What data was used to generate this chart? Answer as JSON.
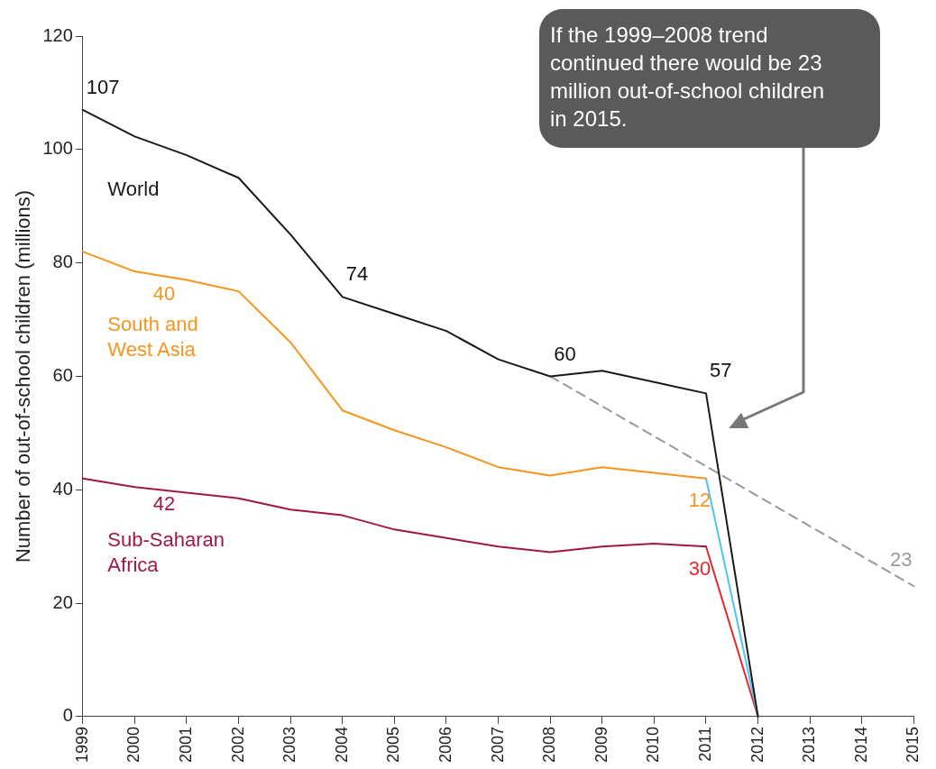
{
  "chart_data": {
    "type": "line",
    "ylabel": "Number of out-of-school children (millions)",
    "x": [
      1999,
      2000,
      2001,
      2002,
      2003,
      2004,
      2005,
      2006,
      2007,
      2008,
      2009,
      2010,
      2011,
      2012
    ],
    "xlim": [
      1999,
      2015
    ],
    "xticks": [
      1999,
      2000,
      2001,
      2002,
      2003,
      2004,
      2005,
      2006,
      2007,
      2008,
      2009,
      2010,
      2011,
      2012,
      2013,
      2014,
      2015
    ],
    "ylim": [
      0,
      120
    ],
    "yticks": [
      0,
      20,
      40,
      60,
      80,
      100,
      120
    ],
    "grid": false,
    "legend": false,
    "marker": "none",
    "series": [
      {
        "name": "World",
        "color": "#1a1a1a",
        "values": [
          107,
          102.3,
          99,
          95,
          85,
          74,
          71,
          68,
          63,
          60,
          61,
          59,
          57,
          0
        ],
        "value_labels": [
          "107",
          null,
          null,
          null,
          null,
          "74",
          null,
          null,
          null,
          "60",
          null,
          null,
          "57",
          null
        ]
      },
      {
        "name": "South and West Asia",
        "color": "#f7941d",
        "values": [
          82,
          78.5,
          77,
          75,
          66,
          54,
          50.5,
          47.5,
          44,
          42.5,
          44,
          43,
          42,
          null
        ]
      },
      {
        "name": "Sub-Saharan Africa",
        "color": "#a0154a",
        "values": [
          42,
          40.5,
          39.5,
          38.5,
          36.5,
          35.5,
          33,
          31.5,
          30,
          29,
          30,
          30.5,
          30,
          null
        ]
      },
      {
        "color": "#4fc3f7",
        "x": [
          2011,
          2012
        ],
        "values": [
          42,
          0
        ]
      },
      {
        "color": "#e8262a",
        "x": [
          2011,
          2012
        ],
        "values": [
          30,
          0
        ]
      },
      {
        "color": "#999999",
        "x": [
          2008,
          2015
        ],
        "values": [
          60,
          23
        ],
        "line_style": "dashed"
      }
    ],
    "annotations": [
      "40",
      "42",
      "12",
      "30",
      {
        "text": "23",
        "x": 2015,
        "y": 23
      },
      "If  the 1999–2008 trend continued there would be 23 million out-of-school children in 2015."
    ]
  }
}
